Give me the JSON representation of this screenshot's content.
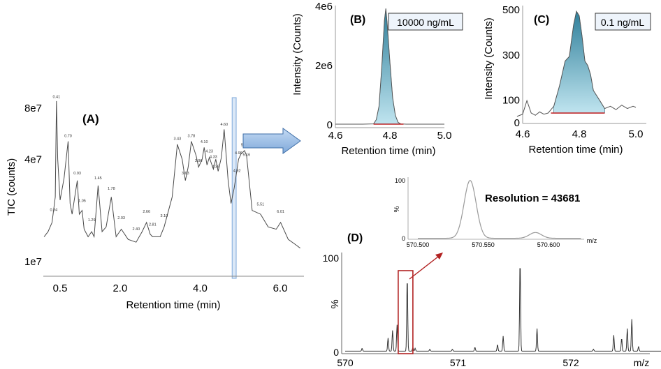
{
  "colors": {
    "trace": "#4a4a4a",
    "fill_top": "#2f7f9a",
    "fill_bottom": "#bfe4ef",
    "highlight": "#c9ddf2",
    "arrow": "#9dbfe6",
    "red": "#c0292b"
  },
  "chart_data": [
    {
      "id": "A",
      "type": "line",
      "panel_label": "(A)",
      "xlabel": "Retention time (min)",
      "ylabel": "TIC (counts)",
      "xticks": [
        "0.5",
        "2.0",
        "4.0",
        "6.0"
      ],
      "yticks": [
        "1e7",
        "4e7",
        "8e7"
      ],
      "xlim": [
        0.1,
        6.5
      ],
      "highlight_window": [
        4.8,
        4.9
      ],
      "x": [
        0.1,
        0.2,
        0.3,
        0.38,
        0.41,
        0.44,
        0.5,
        0.6,
        0.7,
        0.75,
        0.8,
        0.9,
        0.93,
        0.98,
        1.05,
        1.1,
        1.2,
        1.29,
        1.35,
        1.45,
        1.55,
        1.65,
        1.78,
        1.9,
        2.03,
        2.2,
        2.4,
        2.55,
        2.66,
        2.75,
        2.81,
        3.0,
        3.1,
        3.3,
        3.43,
        3.55,
        3.63,
        3.7,
        3.78,
        3.9,
        3.96,
        4.05,
        4.1,
        4.17,
        4.23,
        4.33,
        4.39,
        4.45,
        4.53,
        4.6,
        4.7,
        4.77,
        4.85,
        4.96,
        5.02,
        5.11,
        5.16,
        5.3,
        5.51,
        5.7,
        5.9,
        6.01,
        6.2,
        6.4,
        6.5
      ],
      "y": [
        14000000.0,
        15000000.0,
        17000000.0,
        24000000.0,
        88000000.0,
        40000000.0,
        23000000.0,
        31000000.0,
        51000000.0,
        22000000.0,
        19000000.0,
        27000000.0,
        30000000.0,
        19000000.0,
        20000000.0,
        15500000.0,
        14000000.0,
        15000000.0,
        14000000.0,
        28000000.0,
        15000000.0,
        16000000.0,
        24000000.0,
        14000000.0,
        15500000.0,
        13500000.0,
        13000000.0,
        15000000.0,
        17000000.0,
        14500000.0,
        14000000.0,
        14000000.0,
        16000000.0,
        24000000.0,
        49000000.0,
        40000000.0,
        30000000.0,
        36000000.0,
        51000000.0,
        42000000.0,
        36000000.0,
        40000000.0,
        47000000.0,
        37000000.0,
        41000000.0,
        35000000.0,
        40000000.0,
        34000000.0,
        41000000.0,
        60000000.0,
        30000000.0,
        22000000.0,
        27000000.0,
        40000000.0,
        43000000.0,
        45000000.0,
        42000000.0,
        20000000.0,
        19000000.0,
        16000000.0,
        15500000.0,
        17000000.0,
        13500000.0,
        12500000.0,
        12000000.0
      ],
      "peak_labels": [
        {
          "x": 0.34,
          "y": 19500000.0,
          "text": "0.34"
        },
        {
          "x": 0.41,
          "y": 90000000.0,
          "text": "0.41"
        },
        {
          "x": 0.7,
          "y": 53000000.0,
          "text": "0.70"
        },
        {
          "x": 0.93,
          "y": 32000000.0,
          "text": "0.93"
        },
        {
          "x": 1.05,
          "y": 22000000.0,
          "text": "1.05"
        },
        {
          "x": 1.29,
          "y": 17000000.0,
          "text": "1.29"
        },
        {
          "x": 1.45,
          "y": 30000000.0,
          "text": "1.45"
        },
        {
          "x": 1.78,
          "y": 26000000.0,
          "text": "1.78"
        },
        {
          "x": 2.03,
          "y": 17500000.0,
          "text": "2.03"
        },
        {
          "x": 2.4,
          "y": 15000000.0,
          "text": "2.40"
        },
        {
          "x": 2.66,
          "y": 19000000.0,
          "text": "2.66"
        },
        {
          "x": 2.81,
          "y": 16000000.0,
          "text": "2.81"
        },
        {
          "x": 3.1,
          "y": 18000000.0,
          "text": "3.10"
        },
        {
          "x": 3.43,
          "y": 51000000.0,
          "text": "3.43"
        },
        {
          "x": 3.63,
          "y": 32000000.0,
          "text": "3.63"
        },
        {
          "x": 3.78,
          "y": 53000000.0,
          "text": "3.78"
        },
        {
          "x": 3.96,
          "y": 38000000.0,
          "text": "3.96"
        },
        {
          "x": 4.1,
          "y": 49000000.0,
          "text": "4.10"
        },
        {
          "x": 4.23,
          "y": 43000000.0,
          "text": "4.23"
        },
        {
          "x": 4.33,
          "y": 40000000.0,
          "text": "4.33"
        },
        {
          "x": 4.39,
          "y": 35000000.0,
          "text": "4.39"
        },
        {
          "x": 4.6,
          "y": 62000000.0,
          "text": "4.60"
        },
        {
          "x": 4.92,
          "y": 33000000.0,
          "text": "4.92"
        },
        {
          "x": 4.96,
          "y": 42000000.0,
          "text": "4.96"
        },
        {
          "x": 5.11,
          "y": 47000000.0,
          "text": "5.11"
        },
        {
          "x": 5.16,
          "y": 41000000.0,
          "text": "5.16"
        },
        {
          "x": 5.51,
          "y": 21000000.0,
          "text": "5.51"
        },
        {
          "x": 6.01,
          "y": 19000000.0,
          "text": "6.01"
        }
      ]
    },
    {
      "id": "B",
      "type": "area",
      "panel_label": "(B)",
      "annotation": "10000 ng/mL",
      "xlabel": "Retention time (min)",
      "ylabel": "Intensity (Counts)",
      "xticks": [
        "4.6",
        "4.8",
        "5.0"
      ],
      "yticks": [
        "0",
        "2e6",
        "4e6"
      ],
      "xlim": [
        4.6,
        5.0
      ],
      "ylim": [
        0,
        4000000.0
      ],
      "x": [
        4.6,
        4.7,
        4.74,
        4.75,
        4.76,
        4.77,
        4.78,
        4.785,
        4.79,
        4.8,
        4.81,
        4.82,
        4.83,
        4.84,
        4.86,
        4.9,
        5.0
      ],
      "y": [
        0,
        0,
        10000.0,
        150000.0,
        600000.0,
        1900000.0,
        3500000.0,
        3900000.0,
        3400000.0,
        2100000.0,
        900000.0,
        300000.0,
        60000.0,
        10000.0,
        0,
        0,
        0
      ],
      "baseline": [
        4.74,
        4.85
      ]
    },
    {
      "id": "C",
      "type": "area",
      "panel_label": "(C)",
      "annotation": "0.1 ng/mL",
      "xlabel": "Retention time (min)",
      "ylabel": "Intensity (Counts)",
      "xticks": [
        "4.6",
        "4.8",
        "5.0"
      ],
      "yticks": [
        "0",
        "100",
        "300",
        "500"
      ],
      "xlim": [
        4.58,
        5.0
      ],
      "ylim": [
        0,
        510
      ],
      "x": [
        4.58,
        4.6,
        4.615,
        4.63,
        4.645,
        4.66,
        4.675,
        4.69,
        4.71,
        4.73,
        4.75,
        4.765,
        4.78,
        4.79,
        4.8,
        4.81,
        4.82,
        4.83,
        4.84,
        4.85,
        4.86,
        4.875,
        4.89,
        4.91,
        4.93,
        4.95,
        4.97,
        4.99,
        5.0
      ],
      "y": [
        25,
        35,
        95,
        40,
        30,
        45,
        35,
        40,
        70,
        160,
        270,
        290,
        430,
        490,
        470,
        380,
        270,
        250,
        210,
        140,
        120,
        90,
        60,
        70,
        55,
        75,
        60,
        70,
        65
      ],
      "baseline": [
        4.7,
        4.89
      ]
    },
    {
      "id": "D",
      "type": "line",
      "panel_label": "(D)",
      "xlabel": "m/z",
      "ylabel": "%",
      "xticks": [
        "570",
        "571",
        "572"
      ],
      "yticks": [
        "0",
        "100"
      ],
      "xlim": [
        570.0,
        572.95
      ],
      "ylim": [
        0,
        100
      ],
      "peaks": [
        {
          "x": 570.15,
          "y": 3
        },
        {
          "x": 570.38,
          "y": 14
        },
        {
          "x": 570.42,
          "y": 22
        },
        {
          "x": 570.46,
          "y": 28
        },
        {
          "x": 570.55,
          "y": 80
        },
        {
          "x": 570.6,
          "y": 4
        },
        {
          "x": 570.62,
          "y": 3
        },
        {
          "x": 570.75,
          "y": 2
        },
        {
          "x": 570.95,
          "y": 2
        },
        {
          "x": 571.15,
          "y": 4
        },
        {
          "x": 571.35,
          "y": 7
        },
        {
          "x": 571.4,
          "y": 16
        },
        {
          "x": 571.55,
          "y": 98
        },
        {
          "x": 571.7,
          "y": 24
        },
        {
          "x": 572.2,
          "y": 2
        },
        {
          "x": 572.38,
          "y": 17
        },
        {
          "x": 572.45,
          "y": 14
        },
        {
          "x": 572.5,
          "y": 24
        },
        {
          "x": 572.54,
          "y": 34
        },
        {
          "x": 572.6,
          "y": 5
        },
        {
          "x": 572.85,
          "y": 3
        }
      ],
      "zoom_box": [
        570.47,
        570.6
      ],
      "inset": {
        "title": "Resolution = 43681",
        "xlabel": "m/z",
        "ylabel": "%",
        "xticks": [
          "570.500",
          "570.550",
          "570.600"
        ],
        "yticks": [
          "0",
          "100"
        ],
        "xlim": [
          570.5,
          570.625
        ],
        "ylim": [
          0,
          100
        ],
        "peaks": [
          {
            "center": 570.54,
            "height": 100,
            "width": 0.0065
          },
          {
            "center": 570.59,
            "height": 10,
            "width": 0.0065
          }
        ]
      }
    }
  ]
}
